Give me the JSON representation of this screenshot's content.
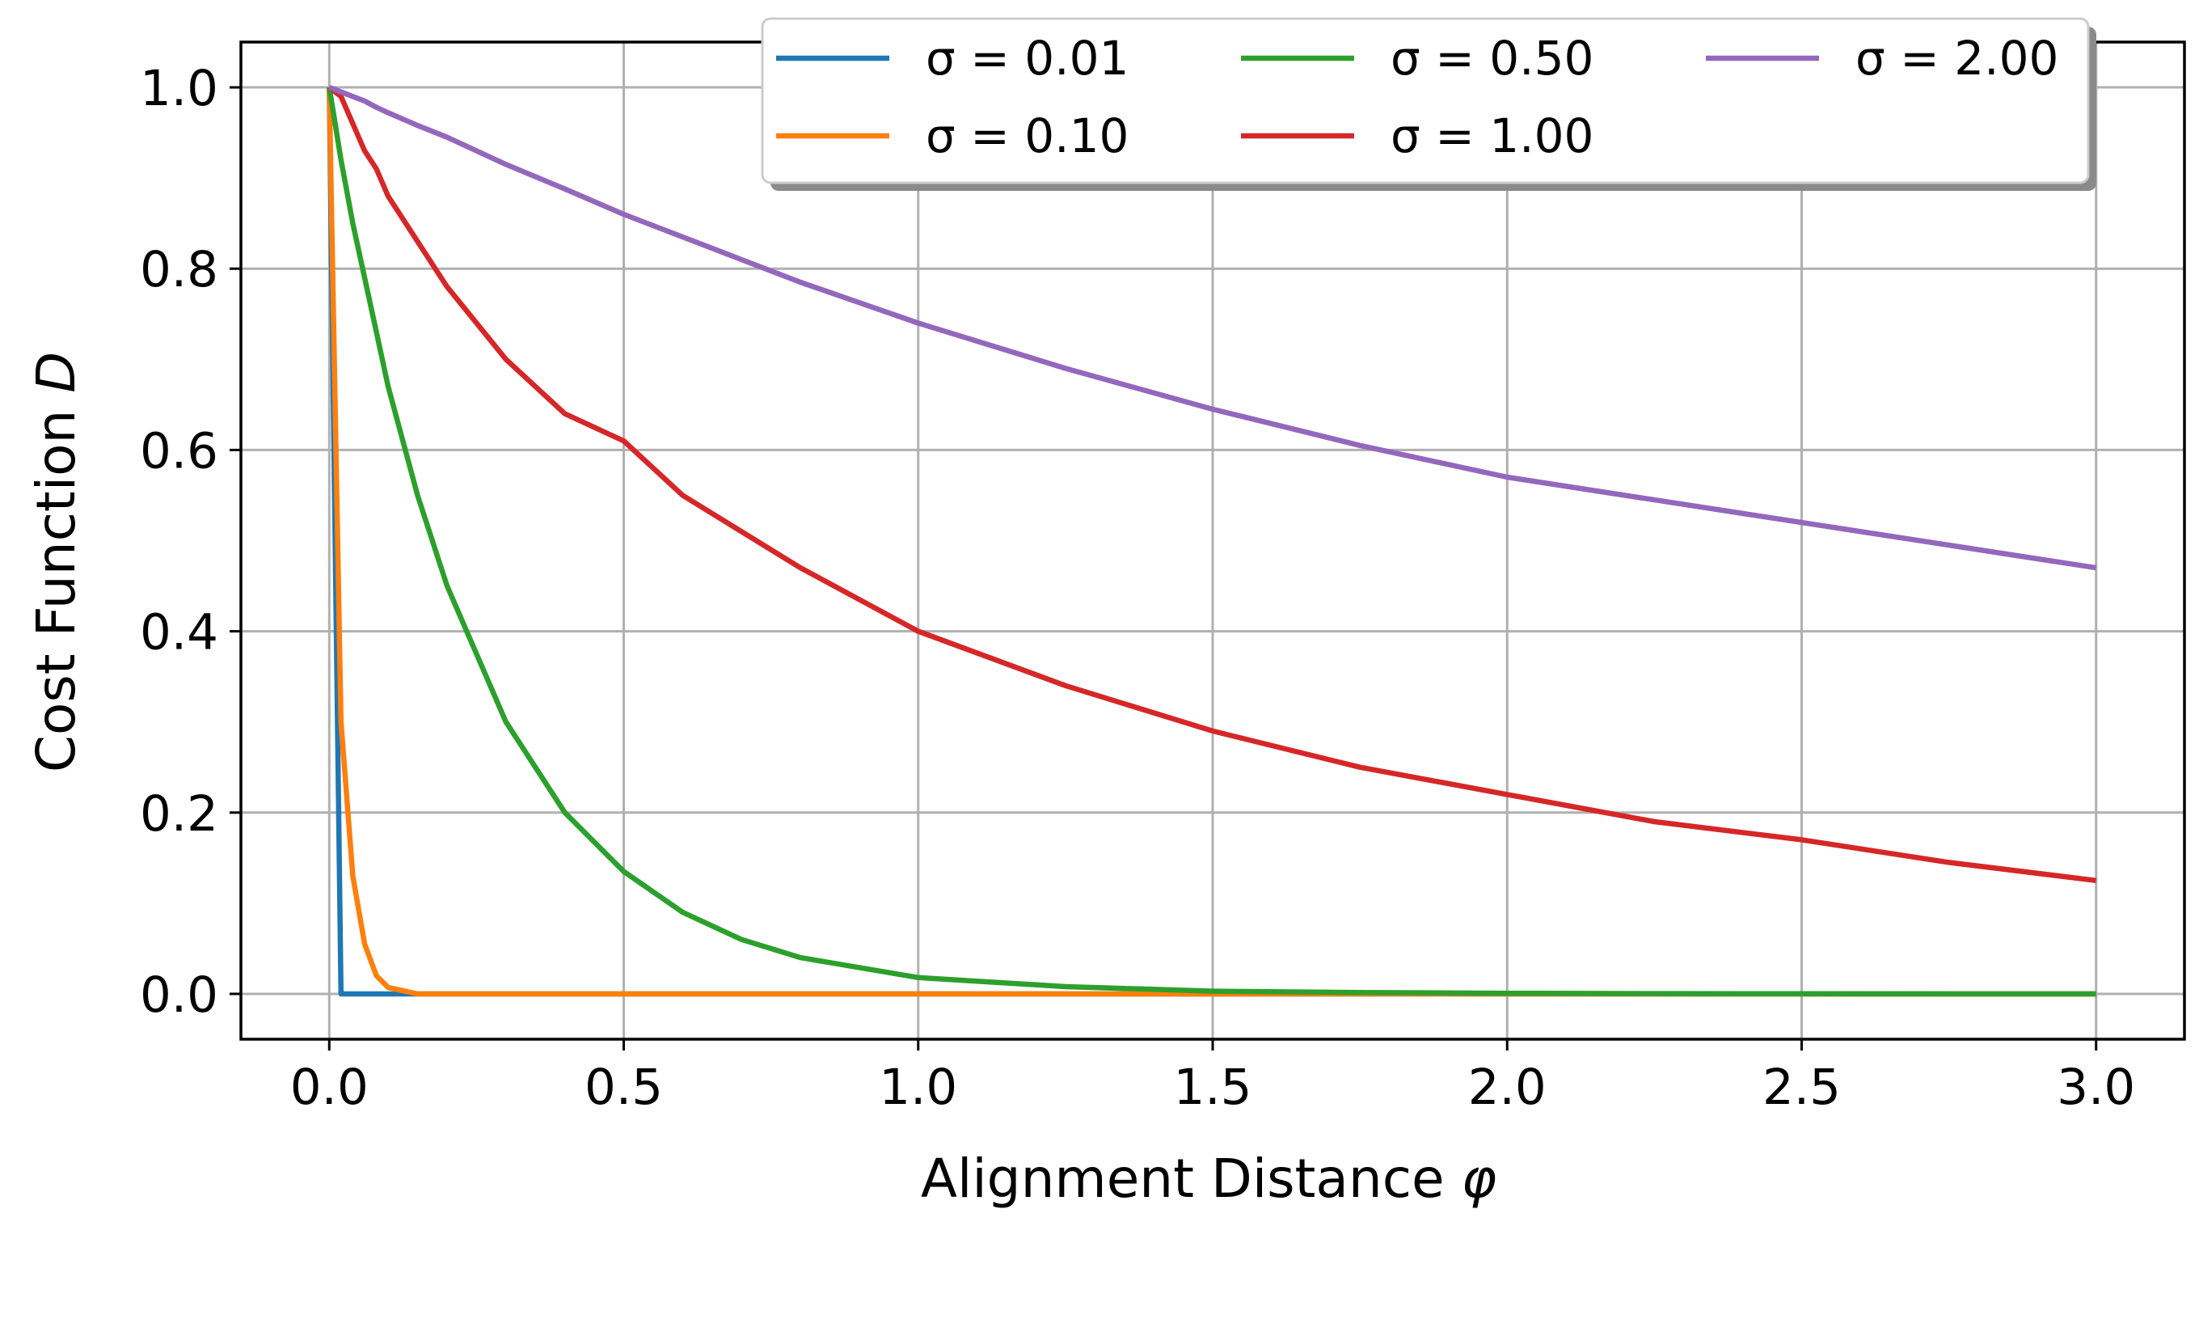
{
  "chart_data": {
    "type": "line",
    "title": "",
    "xlabel": "Alignment Distance",
    "xlabel_symbol": "φ",
    "ylabel": "Cost Function",
    "ylabel_symbol": "D",
    "xlim": [
      -0.15,
      3.15
    ],
    "ylim": [
      -0.05,
      1.05
    ],
    "xticks": [
      0.0,
      0.5,
      1.0,
      1.5,
      2.0,
      2.5,
      3.0
    ],
    "xtick_labels": [
      "0.0",
      "0.5",
      "1.0",
      "1.5",
      "2.0",
      "2.5",
      "3.0"
    ],
    "yticks": [
      0.0,
      0.2,
      0.4,
      0.6,
      0.8,
      1.0
    ],
    "ytick_labels": [
      "0.0",
      "0.2",
      "0.4",
      "0.6",
      "0.8",
      "1.0"
    ],
    "grid": true,
    "legend_placement": "top-right",
    "legend_columns": 3,
    "x": [
      0.0,
      0.02,
      0.04,
      0.06,
      0.08,
      0.1,
      0.15,
      0.2,
      0.3,
      0.4,
      0.5,
      0.6,
      0.7,
      0.8,
      1.0,
      1.25,
      1.5,
      1.75,
      2.0,
      2.25,
      2.5,
      2.75,
      3.0
    ],
    "series": [
      {
        "name": "σ = 0.01",
        "label": "σ = 0.01",
        "color": "#1f77b4",
        "values": [
          1.0,
          0.0,
          0.0,
          0.0,
          0.0,
          0.0,
          0.0,
          0.0,
          0.0,
          0.0,
          0.0,
          0.0,
          0.0,
          0.0,
          0.0,
          0.0,
          0.0,
          0.0,
          0.0,
          0.0,
          0.0,
          0.0,
          0.0
        ]
      },
      {
        "name": "σ = 0.10",
        "label": "σ = 0.10",
        "color": "#ff7f0e",
        "values": [
          1.0,
          0.3,
          0.13,
          0.055,
          0.02,
          0.007,
          0.0,
          0.0,
          0.0,
          0.0,
          0.0,
          0.0,
          0.0,
          0.0,
          0.0,
          0.0,
          0.0,
          0.0,
          0.0,
          0.0,
          0.0,
          0.0,
          0.0
        ]
      },
      {
        "name": "σ = 0.50",
        "label": "σ = 0.50",
        "color": "#2ca02c",
        "values": [
          1.0,
          0.92,
          0.85,
          0.79,
          0.73,
          0.67,
          0.55,
          0.45,
          0.3,
          0.2,
          0.135,
          0.09,
          0.06,
          0.04,
          0.018,
          0.008,
          0.003,
          0.0015,
          0.0007,
          0.0003,
          0.0001,
          0.0,
          0.0
        ]
      },
      {
        "name": "σ = 1.00",
        "label": "σ = 1.00",
        "color": "#d62728",
        "values": [
          1.0,
          0.99,
          0.96,
          0.93,
          0.91,
          0.88,
          0.83,
          0.78,
          0.7,
          0.64,
          0.61,
          0.55,
          0.51,
          0.47,
          0.4,
          0.34,
          0.29,
          0.25,
          0.22,
          0.19,
          0.17,
          0.145,
          0.125
        ]
      },
      {
        "name": "σ = 2.00",
        "label": "σ = 2.00",
        "color": "#9467bd",
        "values": [
          1.0,
          0.995,
          0.99,
          0.985,
          0.978,
          0.972,
          0.958,
          0.945,
          0.915,
          0.888,
          0.86,
          0.835,
          0.81,
          0.785,
          0.74,
          0.69,
          0.645,
          0.605,
          0.57,
          0.545,
          0.52,
          0.495,
          0.47
        ]
      }
    ]
  }
}
